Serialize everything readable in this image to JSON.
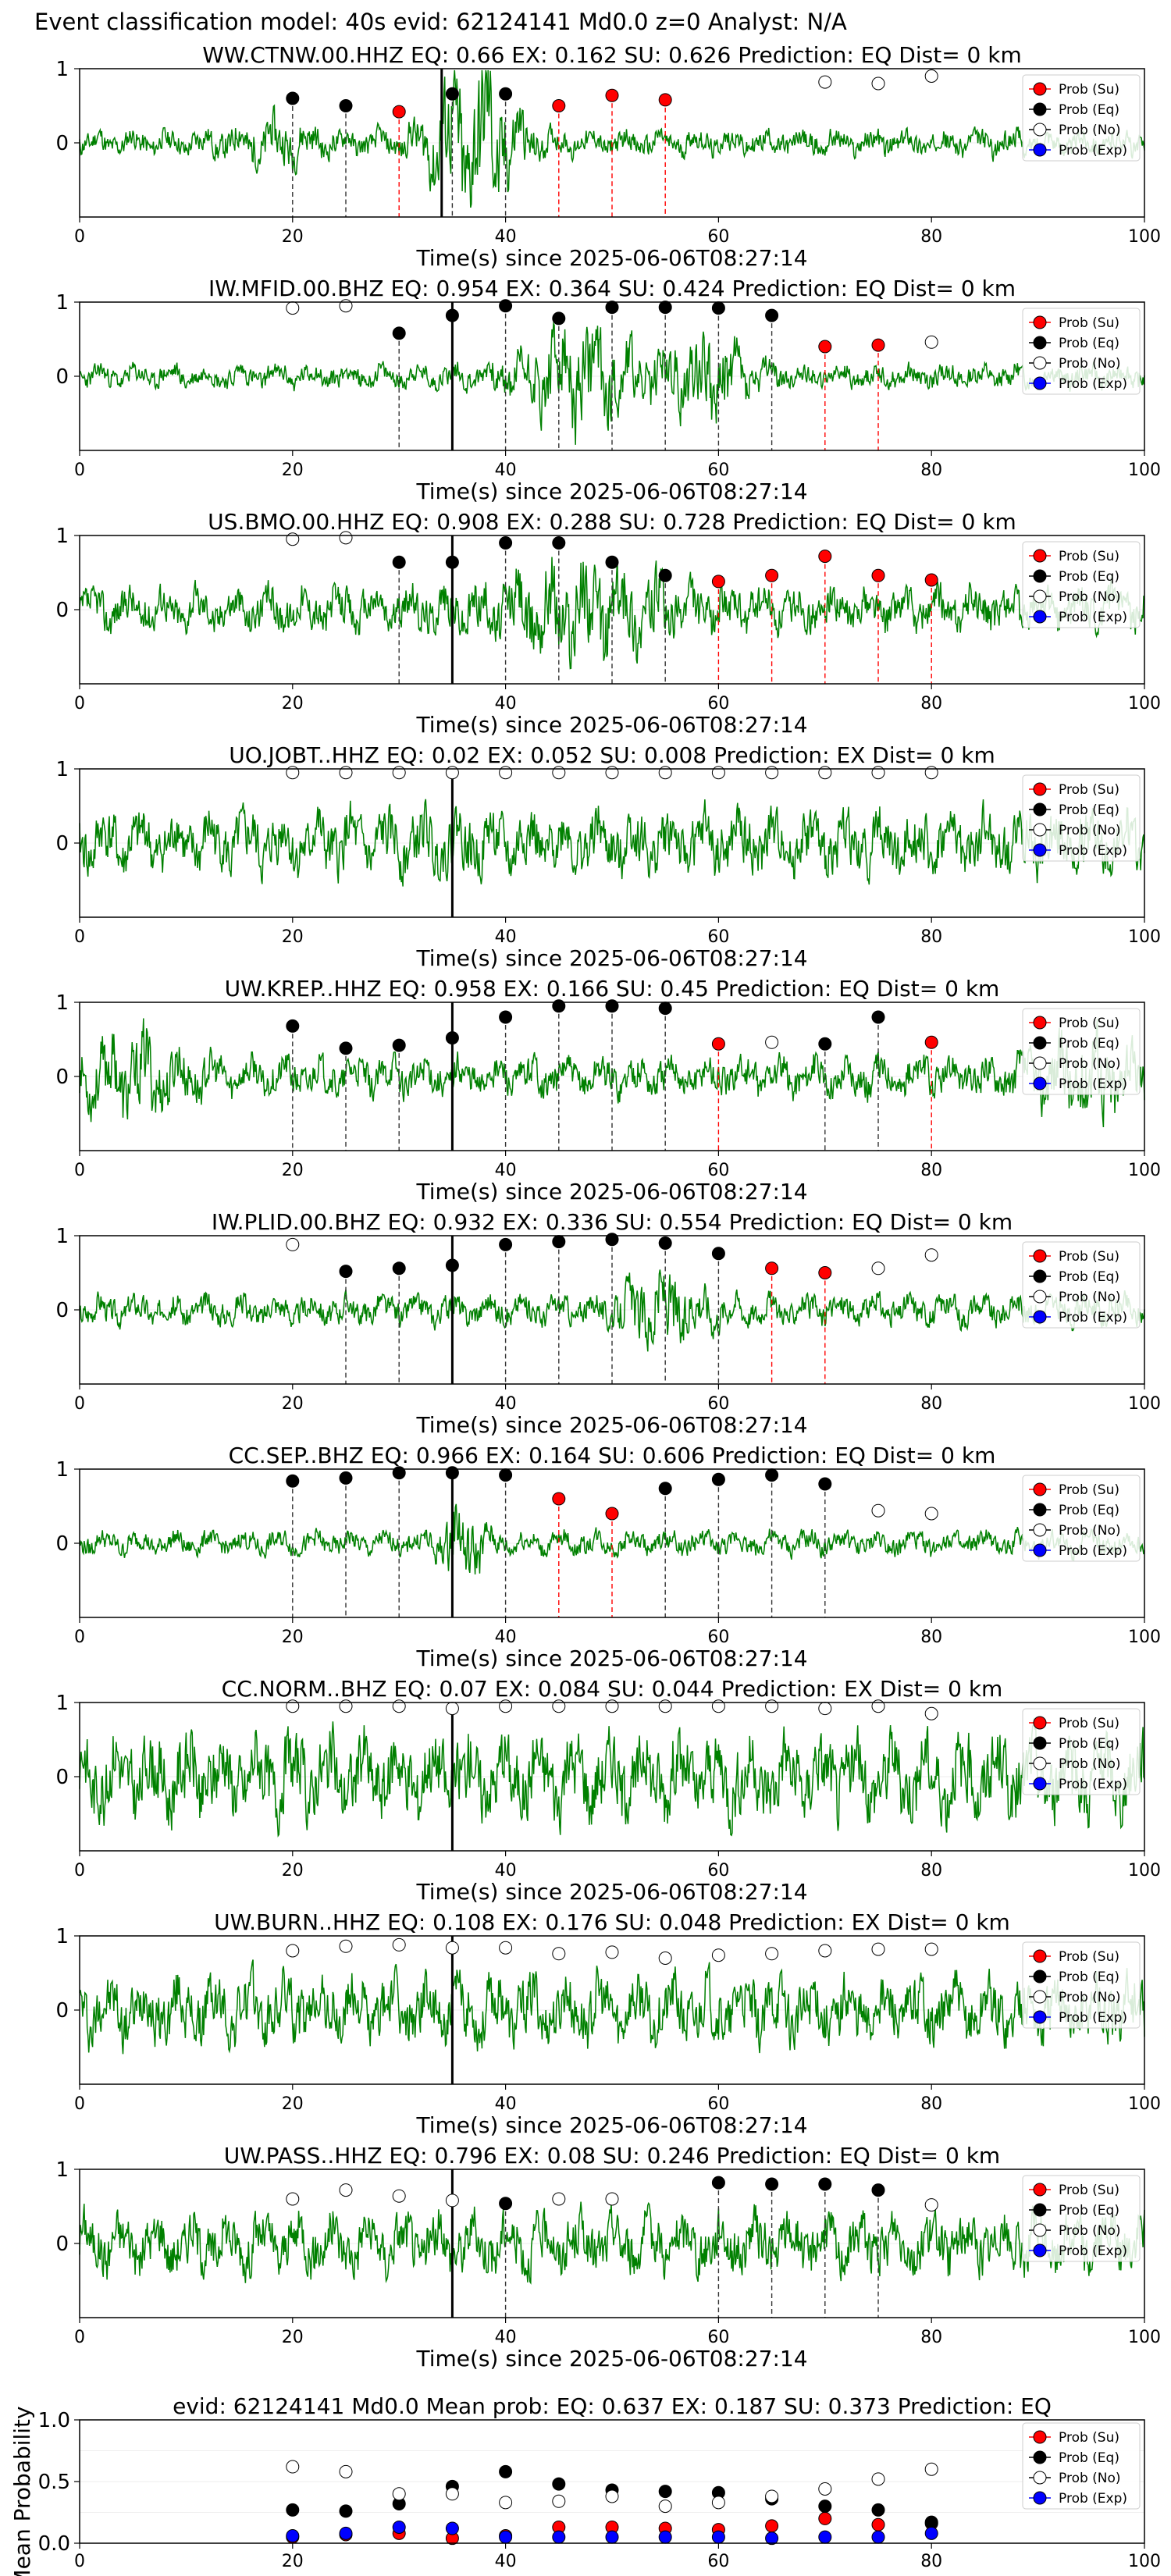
{
  "figure": {
    "title": "Event classification model: 40s evid: 62124141 Md0.0 z=0 Analyst: N/A"
  },
  "legend_labels": [
    "Prob (Su)",
    "Prob (Eq)",
    "Prob (No)",
    "Prob (Exp)"
  ],
  "colors": {
    "waveform": "#008000",
    "su": "#ff0000",
    "eq": "#000000",
    "no": "#ffffff",
    "exp": "#0000ff",
    "su_line": "#ff0000",
    "eq_line": "#333333"
  },
  "chart_data": [
    {
      "type": "line",
      "title": "WW.CTNW.00.HHZ   EQ: 0.66  EX: 0.162  SU: 0.626   Prediction: EQ    Dist= 0 km",
      "xlabel": "Time(s) since 2025-06-06T08:27:14",
      "xlim": [
        0,
        100
      ],
      "ylim": [
        -1,
        1
      ],
      "xticks": [
        "0",
        "20",
        "40",
        "60",
        "80",
        "100"
      ],
      "yticks": [
        "0",
        "1"
      ],
      "waveform": {
        "amp": 0.13,
        "seed": 11,
        "envelopes": [
          [
            18,
            0.14,
            4
          ],
          [
            36,
            0.55,
            3.5
          ],
          [
            39,
            0.3,
            3
          ]
        ]
      },
      "pick_line": 34,
      "markers": [
        [
          20,
          "eq",
          0.6
        ],
        [
          25,
          "eq",
          0.5
        ],
        [
          30,
          "su",
          0.42
        ],
        [
          35,
          "eq",
          0.66
        ],
        [
          40,
          "eq",
          0.66
        ],
        [
          45,
          "su",
          0.5
        ],
        [
          50,
          "su",
          0.64
        ],
        [
          55,
          "su",
          0.58
        ],
        [
          70,
          "no",
          0.82
        ],
        [
          75,
          "no",
          0.8
        ],
        [
          80,
          "no",
          0.9
        ]
      ]
    },
    {
      "type": "line",
      "title": "IW.MFID.00.BHZ   EQ: 0.954  EX: 0.364  SU: 0.424   Prediction: EQ    Dist= 0 km",
      "xlabel": "Time(s) since 2025-06-06T08:27:14",
      "xlim": [
        0,
        100
      ],
      "ylim": [
        -1,
        1
      ],
      "xticks": [
        "0",
        "20",
        "40",
        "60",
        "80",
        "100"
      ],
      "yticks": [
        "0",
        "1"
      ],
      "waveform": {
        "amp": 0.12,
        "seed": 23,
        "envelopes": [
          [
            47,
            0.4,
            6
          ],
          [
            59,
            0.35,
            4
          ]
        ]
      },
      "pick_line": 35,
      "markers": [
        [
          20,
          "no",
          0.92
        ],
        [
          25,
          "no",
          0.95
        ],
        [
          30,
          "eq",
          0.58
        ],
        [
          35,
          "eq",
          0.82
        ],
        [
          40,
          "eq",
          0.95
        ],
        [
          45,
          "eq",
          0.78
        ],
        [
          50,
          "eq",
          0.93
        ],
        [
          55,
          "eq",
          0.93
        ],
        [
          60,
          "eq",
          0.92
        ],
        [
          65,
          "eq",
          0.82
        ],
        [
          70,
          "su",
          0.4
        ],
        [
          75,
          "su",
          0.42
        ],
        [
          80,
          "no",
          0.46
        ]
      ]
    },
    {
      "type": "line",
      "title": "US.BMO.00.HHZ   EQ: 0.908  EX: 0.288  SU: 0.728   Prediction: EQ    Dist= 0 km",
      "xlabel": "Time(s) since 2025-06-06T08:27:14",
      "xlim": [
        0,
        100
      ],
      "ylim": [
        -1,
        1
      ],
      "xticks": [
        "0",
        "20",
        "40",
        "60",
        "80",
        "100"
      ],
      "yticks": [
        "0",
        "1"
      ],
      "waveform": {
        "amp": 0.22,
        "seed": 37,
        "envelopes": [
          [
            47,
            0.3,
            8
          ]
        ]
      },
      "pick_line": 35,
      "markers": [
        [
          20,
          "no",
          0.95
        ],
        [
          25,
          "no",
          0.97
        ],
        [
          30,
          "eq",
          0.64
        ],
        [
          35,
          "eq",
          0.64
        ],
        [
          40,
          "eq",
          0.9
        ],
        [
          45,
          "eq",
          0.9
        ],
        [
          50,
          "eq",
          0.64
        ],
        [
          55,
          "eq",
          0.46
        ],
        [
          60,
          "su",
          0.38
        ],
        [
          65,
          "su",
          0.46
        ],
        [
          70,
          "su",
          0.72
        ],
        [
          75,
          "su",
          0.46
        ],
        [
          80,
          "su",
          0.4
        ]
      ]
    },
    {
      "type": "line",
      "title": "UO.JOBT..HHZ   EQ: 0.02  EX: 0.052  SU: 0.008   Prediction: EX    Dist= 0 km",
      "xlabel": "Time(s) since 2025-06-06T08:27:14",
      "xlim": [
        0,
        100
      ],
      "ylim": [
        -1,
        1
      ],
      "xticks": [
        "0",
        "20",
        "40",
        "60",
        "80",
        "100"
      ],
      "yticks": [
        "0",
        "1"
      ],
      "waveform": {
        "amp": 0.32,
        "seed": 41,
        "envelopes": []
      },
      "pick_line": 35,
      "markers": [
        [
          20,
          "no",
          0.95
        ],
        [
          25,
          "no",
          0.95
        ],
        [
          30,
          "no",
          0.95
        ],
        [
          35,
          "no",
          0.95
        ],
        [
          40,
          "no",
          0.95
        ],
        [
          45,
          "no",
          0.95
        ],
        [
          50,
          "no",
          0.95
        ],
        [
          55,
          "no",
          0.95
        ],
        [
          60,
          "no",
          0.95
        ],
        [
          65,
          "no",
          0.95
        ],
        [
          70,
          "no",
          0.95
        ],
        [
          75,
          "no",
          0.95
        ],
        [
          80,
          "no",
          0.95
        ]
      ]
    },
    {
      "type": "line",
      "title": "UW.KREP..HHZ   EQ: 0.958  EX: 0.166  SU: 0.45   Prediction: EQ    Dist= 0 km",
      "xlabel": "Time(s) since 2025-06-06T08:27:14",
      "xlim": [
        0,
        100
      ],
      "ylim": [
        -1,
        1
      ],
      "xticks": [
        "0",
        "20",
        "40",
        "60",
        "80",
        "100"
      ],
      "yticks": [
        "0",
        "1"
      ],
      "waveform": {
        "amp": 0.2,
        "seed": 53,
        "envelopes": [
          [
            5,
            0.25,
            5
          ],
          [
            95,
            0.3,
            5
          ]
        ]
      },
      "pick_line": 35,
      "markers": [
        [
          20,
          "eq",
          0.68
        ],
        [
          25,
          "eq",
          0.38
        ],
        [
          30,
          "eq",
          0.42
        ],
        [
          35,
          "eq",
          0.52
        ],
        [
          40,
          "eq",
          0.8
        ],
        [
          45,
          "eq",
          0.95
        ],
        [
          50,
          "eq",
          0.95
        ],
        [
          55,
          "eq",
          0.92
        ],
        [
          60,
          "su",
          0.44
        ],
        [
          65,
          "no",
          0.46
        ],
        [
          70,
          "eq",
          0.44
        ],
        [
          75,
          "eq",
          0.8
        ],
        [
          80,
          "su",
          0.46
        ]
      ]
    },
    {
      "type": "line",
      "title": "IW.PLID.00.BHZ   EQ: 0.932  EX: 0.336  SU: 0.554   Prediction: EQ    Dist= 0 km",
      "xlabel": "Time(s) since 2025-06-06T08:27:14",
      "xlim": [
        0,
        100
      ],
      "ylim": [
        -1,
        1
      ],
      "xticks": [
        "0",
        "20",
        "40",
        "60",
        "80",
        "100"
      ],
      "yticks": [
        "0",
        "1"
      ],
      "waveform": {
        "amp": 0.15,
        "seed": 67,
        "envelopes": [
          [
            55,
            0.25,
            4
          ]
        ]
      },
      "pick_line": 35,
      "markers": [
        [
          20,
          "no",
          0.88
        ],
        [
          25,
          "eq",
          0.52
        ],
        [
          30,
          "eq",
          0.56
        ],
        [
          35,
          "eq",
          0.6
        ],
        [
          40,
          "eq",
          0.88
        ],
        [
          45,
          "eq",
          0.92
        ],
        [
          50,
          "eq",
          0.95
        ],
        [
          55,
          "eq",
          0.9
        ],
        [
          60,
          "eq",
          0.76
        ],
        [
          65,
          "su",
          0.56
        ],
        [
          70,
          "su",
          0.5
        ],
        [
          75,
          "no",
          0.56
        ],
        [
          80,
          "no",
          0.74
        ]
      ]
    },
    {
      "type": "line",
      "title": "CC.SEP..BHZ   EQ: 0.966  EX: 0.164  SU: 0.606   Prediction: EQ    Dist= 0 km",
      "xlabel": "Time(s) since 2025-06-06T08:27:14",
      "xlim": [
        0,
        100
      ],
      "ylim": [
        -1,
        1
      ],
      "xticks": [
        "0",
        "20",
        "40",
        "60",
        "80",
        "100"
      ],
      "yticks": [
        "0",
        "1"
      ],
      "waveform": {
        "amp": 0.12,
        "seed": 79,
        "envelopes": [
          [
            36,
            0.3,
            2
          ]
        ]
      },
      "pick_line": 35,
      "markers": [
        [
          20,
          "eq",
          0.84
        ],
        [
          25,
          "eq",
          0.88
        ],
        [
          30,
          "eq",
          0.95
        ],
        [
          35,
          "eq",
          0.95
        ],
        [
          40,
          "eq",
          0.92
        ],
        [
          45,
          "su",
          0.6
        ],
        [
          50,
          "su",
          0.4
        ],
        [
          55,
          "eq",
          0.74
        ],
        [
          60,
          "eq",
          0.86
        ],
        [
          65,
          "eq",
          0.92
        ],
        [
          70,
          "eq",
          0.8
        ],
        [
          75,
          "no",
          0.44
        ],
        [
          80,
          "no",
          0.4
        ]
      ]
    },
    {
      "type": "line",
      "title": "CC.NORM..BHZ   EQ: 0.07  EX: 0.084  SU: 0.044   Prediction: EX    Dist= 0 km",
      "xlabel": "Time(s) since 2025-06-06T08:27:14",
      "xlim": [
        0,
        100
      ],
      "ylim": [
        -1,
        1
      ],
      "xticks": [
        "0",
        "20",
        "40",
        "60",
        "80",
        "100"
      ],
      "yticks": [
        "0",
        "1"
      ],
      "waveform": {
        "amp": 0.42,
        "seed": 83,
        "envelopes": []
      },
      "pick_line": 35,
      "markers": [
        [
          20,
          "no",
          0.95
        ],
        [
          25,
          "no",
          0.95
        ],
        [
          30,
          "no",
          0.95
        ],
        [
          35,
          "no",
          0.92
        ],
        [
          40,
          "no",
          0.95
        ],
        [
          45,
          "no",
          0.95
        ],
        [
          50,
          "no",
          0.95
        ],
        [
          55,
          "no",
          0.95
        ],
        [
          60,
          "no",
          0.95
        ],
        [
          65,
          "no",
          0.95
        ],
        [
          70,
          "no",
          0.92
        ],
        [
          75,
          "no",
          0.95
        ],
        [
          80,
          "no",
          0.85
        ]
      ]
    },
    {
      "type": "line",
      "title": "UW.BURN..HHZ   EQ: 0.108  EX: 0.176  SU: 0.048   Prediction: EX    Dist= 0 km",
      "xlabel": "Time(s) since 2025-06-06T08:27:14",
      "xlim": [
        0,
        100
      ],
      "ylim": [
        -1,
        1
      ],
      "xticks": [
        "0",
        "20",
        "40",
        "60",
        "80",
        "100"
      ],
      "yticks": [
        "0",
        "1"
      ],
      "waveform": {
        "amp": 0.34,
        "seed": 97,
        "envelopes": []
      },
      "pick_line": 35,
      "markers": [
        [
          20,
          "no",
          0.8
        ],
        [
          25,
          "no",
          0.86
        ],
        [
          30,
          "no",
          0.88
        ],
        [
          35,
          "no",
          0.84
        ],
        [
          40,
          "no",
          0.84
        ],
        [
          45,
          "no",
          0.76
        ],
        [
          50,
          "no",
          0.78
        ],
        [
          55,
          "no",
          0.7
        ],
        [
          60,
          "no",
          0.74
        ],
        [
          65,
          "no",
          0.76
        ],
        [
          70,
          "no",
          0.8
        ],
        [
          75,
          "no",
          0.82
        ],
        [
          80,
          "no",
          0.82
        ]
      ]
    },
    {
      "type": "line",
      "title": "UW.PASS..HHZ   EQ: 0.796  EX: 0.08  SU: 0.246   Prediction: EQ    Dist= 0 km",
      "xlabel": "Time(s) since 2025-06-06T08:27:14",
      "xlim": [
        0,
        100
      ],
      "ylim": [
        -1,
        1
      ],
      "xticks": [
        "0",
        "20",
        "40",
        "60",
        "80",
        "100"
      ],
      "yticks": [
        "0",
        "1"
      ],
      "waveform": {
        "amp": 0.3,
        "seed": 101,
        "envelopes": []
      },
      "pick_line": 35,
      "markers": [
        [
          20,
          "no",
          0.6
        ],
        [
          25,
          "no",
          0.72
        ],
        [
          30,
          "no",
          0.64
        ],
        [
          35,
          "no",
          0.58
        ],
        [
          40,
          "eq",
          0.54
        ],
        [
          45,
          "no",
          0.6
        ],
        [
          50,
          "no",
          0.6
        ],
        [
          60,
          "eq",
          0.82
        ],
        [
          65,
          "eq",
          0.8
        ],
        [
          70,
          "eq",
          0.8
        ],
        [
          75,
          "eq",
          0.72
        ],
        [
          80,
          "no",
          0.52
        ]
      ]
    },
    {
      "type": "scatter",
      "title": "evid: 62124141  Md0.0   Mean prob:   EQ: 0.637  EX: 0.187  SU: 0.373   Prediction: EQ",
      "ylabel": "Mean Probability",
      "xlim": [
        0,
        100
      ],
      "ylim": [
        0,
        1
      ],
      "xticks": [
        "0",
        "20",
        "40",
        "60",
        "80",
        "100"
      ],
      "yticks": [
        "0.0",
        "0.5",
        "1.0"
      ],
      "series": [
        {
          "name": "Prob (Su)",
          "kind": "su",
          "x": [
            20,
            25,
            30,
            35,
            40,
            45,
            50,
            55,
            60,
            65,
            70,
            75,
            80
          ],
          "y": [
            0.05,
            0.07,
            0.08,
            0.04,
            0.06,
            0.13,
            0.13,
            0.12,
            0.11,
            0.14,
            0.2,
            0.15,
            0.16
          ]
        },
        {
          "name": "Prob (Eq)",
          "kind": "eq",
          "x": [
            20,
            25,
            30,
            35,
            40,
            45,
            50,
            55,
            60,
            65,
            70,
            75,
            80
          ],
          "y": [
            0.27,
            0.26,
            0.32,
            0.46,
            0.58,
            0.48,
            0.43,
            0.42,
            0.41,
            0.36,
            0.3,
            0.27,
            0.17
          ]
        },
        {
          "name": "Prob (No)",
          "kind": "no",
          "x": [
            20,
            25,
            30,
            35,
            40,
            45,
            50,
            55,
            60,
            65,
            70,
            75,
            80
          ],
          "y": [
            0.62,
            0.58,
            0.4,
            0.4,
            0.33,
            0.34,
            0.38,
            0.3,
            0.33,
            0.38,
            0.44,
            0.52,
            0.6
          ]
        },
        {
          "name": "Prob (Exp)",
          "kind": "exp",
          "x": [
            20,
            25,
            30,
            35,
            40,
            45,
            50,
            55,
            60,
            65,
            70,
            75,
            80
          ],
          "y": [
            0.06,
            0.08,
            0.13,
            0.12,
            0.05,
            0.05,
            0.05,
            0.05,
            0.05,
            0.04,
            0.05,
            0.05,
            0.08
          ]
        }
      ]
    }
  ]
}
